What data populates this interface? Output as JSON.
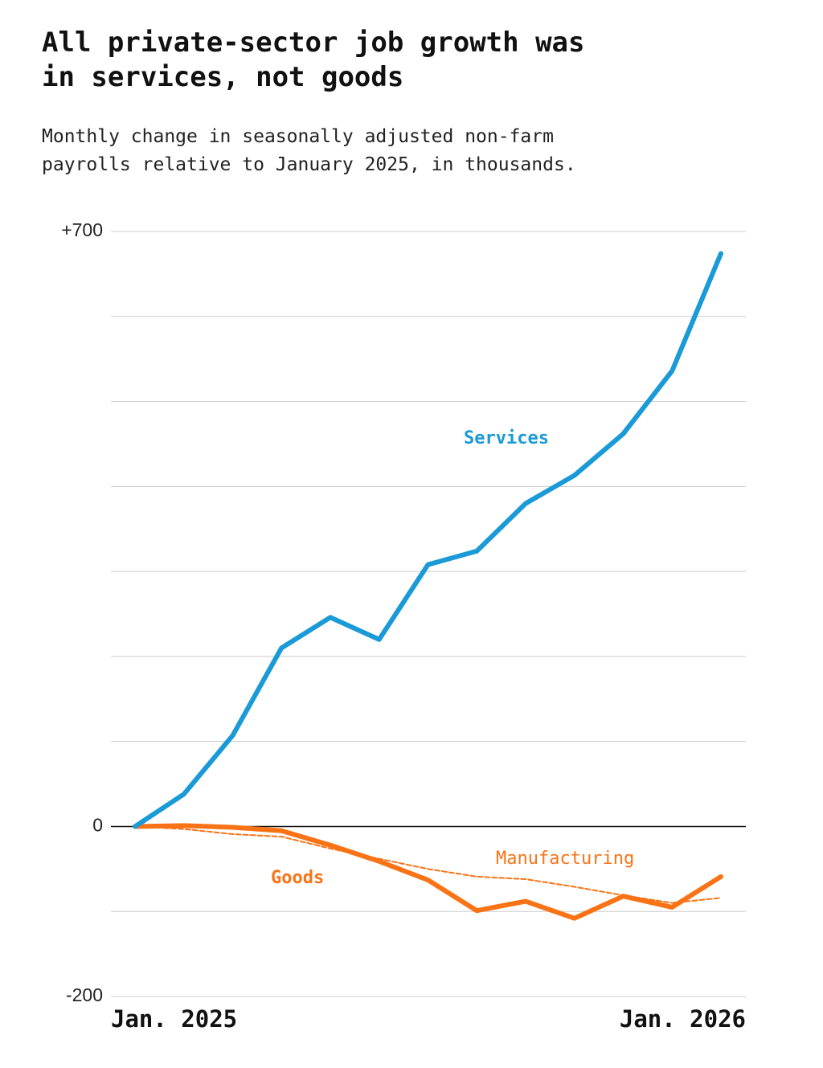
{
  "chart_data": {
    "type": "line",
    "title": [
      "All private-sector job growth was",
      "in services, not goods"
    ],
    "subtitle": [
      "Monthly change in seasonally adjusted non-farm",
      "payrolls relative to January 2025, in thousands."
    ],
    "categories": [
      "Jan. 2025",
      null,
      null,
      null,
      null,
      null,
      null,
      null,
      null,
      null,
      null,
      null,
      "Jan. 2026"
    ],
    "series": [
      {
        "name": "Services",
        "color": "#1a9ad6",
        "values": [
          0,
          38,
          107,
          210,
          246,
          220,
          308,
          324,
          380,
          413,
          462,
          536,
          674
        ]
      },
      {
        "name": "Goods",
        "color": "#f97316",
        "values": [
          0,
          1,
          -1,
          -5,
          -22,
          -41,
          -63,
          -99,
          -88,
          -108,
          -82,
          -95,
          -59
        ]
      },
      {
        "name": "Manufacturing",
        "color": "#f97316",
        "dashed": true,
        "values": [
          0,
          -3,
          -9,
          -12,
          -26,
          -38,
          -50,
          -59,
          -62,
          -71,
          -81,
          -90,
          -84
        ]
      }
    ],
    "ylim": [
      -200,
      700
    ],
    "yticks": [
      {
        "value": 700,
        "label": "+700"
      },
      0,
      -200
    ],
    "ygrid": [
      700,
      600,
      500,
      400,
      300,
      200,
      100,
      0,
      -100,
      -200
    ],
    "grid": true
  }
}
